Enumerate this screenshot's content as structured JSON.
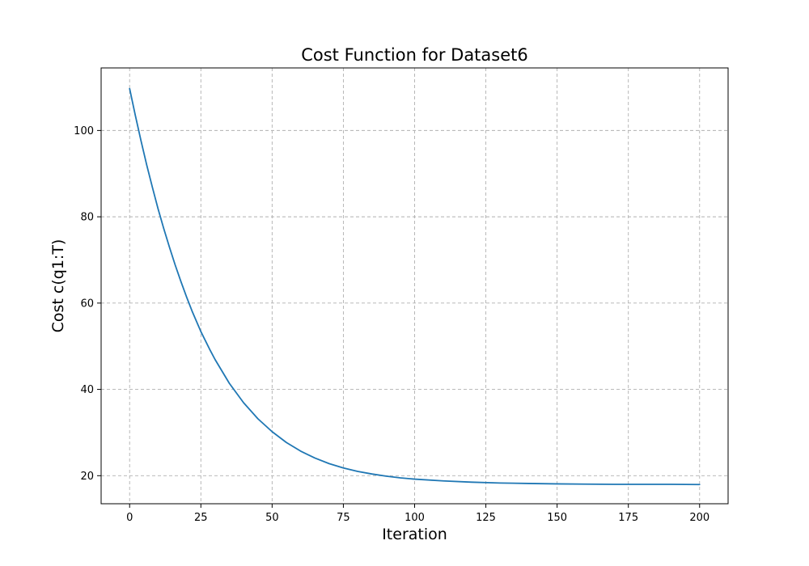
{
  "chart_data": {
    "type": "line",
    "title": "Cost Function for Dataset6",
    "xlabel": "Iteration",
    "ylabel": "Cost c(q1:T)",
    "xlim": [
      -10,
      210
    ],
    "ylim": [
      13.5,
      114.5
    ],
    "xticks": [
      0,
      25,
      50,
      75,
      100,
      125,
      150,
      175,
      200
    ],
    "yticks": [
      20,
      40,
      60,
      80,
      100
    ],
    "grid": true,
    "line_color": "#1f77b4",
    "series": [
      {
        "x": [
          0,
          2,
          4,
          6,
          8,
          10,
          12,
          14,
          16,
          18,
          20,
          22,
          25,
          28,
          30,
          35,
          40,
          45,
          50,
          55,
          60,
          65,
          70,
          75,
          80,
          85,
          90,
          95,
          100,
          110,
          120,
          130,
          140,
          150,
          160,
          170,
          180,
          190,
          200
        ],
        "values": [
          109.7,
          103.5,
          97.6,
          92.0,
          86.8,
          81.8,
          77.2,
          72.9,
          68.8,
          65.0,
          61.4,
          58.0,
          53.4,
          49.4,
          46.9,
          41.4,
          36.9,
          33.2,
          30.2,
          27.7,
          25.7,
          24.1,
          22.8,
          21.8,
          21.0,
          20.4,
          19.9,
          19.5,
          19.2,
          18.8,
          18.5,
          18.3,
          18.2,
          18.1,
          18.05,
          18.0,
          18.0,
          18.0,
          17.95
        ]
      }
    ]
  }
}
